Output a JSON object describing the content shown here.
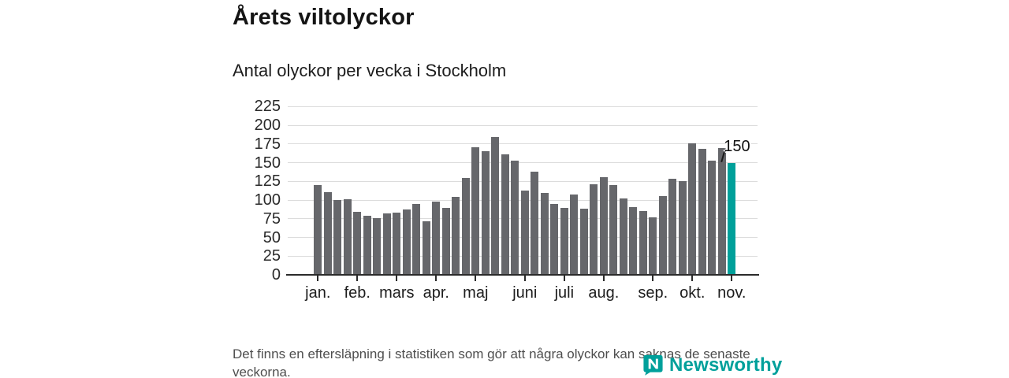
{
  "header": {
    "title": "Årets viltolyckor",
    "subtitle": "Antal olyckor per vecka i Stockholm"
  },
  "chart_data": {
    "type": "bar",
    "title": "Årets viltolyckor",
    "subtitle": "Antal olyckor per vecka i Stockholm",
    "ylabel": "",
    "xlabel": "",
    "ylim": [
      0,
      225
    ],
    "y_ticks": [
      0,
      25,
      50,
      75,
      100,
      125,
      150,
      175,
      200,
      225
    ],
    "grid": "horizontal",
    "values": [
      120,
      111,
      100,
      101,
      84,
      79,
      76,
      82,
      83,
      87,
      95,
      72,
      98,
      89,
      104,
      130,
      171,
      165,
      184,
      161,
      153,
      113,
      138,
      110,
      95,
      89,
      107,
      88,
      121,
      131,
      120,
      102,
      91,
      85,
      77,
      105,
      128,
      125,
      176,
      168,
      153,
      170,
      150
    ],
    "highlight_index": 42,
    "highlight_label": "150",
    "month_ticks": [
      {
        "bar": 1,
        "label": "jan."
      },
      {
        "bar": 5,
        "label": "feb."
      },
      {
        "bar": 9,
        "label": "mars"
      },
      {
        "bar": 13,
        "label": "apr."
      },
      {
        "bar": 17,
        "label": "maj"
      },
      {
        "bar": 22,
        "label": "juni"
      },
      {
        "bar": 26,
        "label": "juli"
      },
      {
        "bar": 30,
        "label": "aug."
      },
      {
        "bar": 35,
        "label": "sep."
      },
      {
        "bar": 39,
        "label": "okt."
      },
      {
        "bar": 43,
        "label": "nov."
      }
    ],
    "colors": {
      "bar": "#66676b",
      "highlight": "#00a09a",
      "axis": "#2b2b2b",
      "grid": "#dcdcdc"
    }
  },
  "footer": {
    "note": "Det finns en eftersläpning i statistiken som gör att några olyckor kan saknas de senaste veckorna.",
    "logo_text": "Newsworthy"
  }
}
